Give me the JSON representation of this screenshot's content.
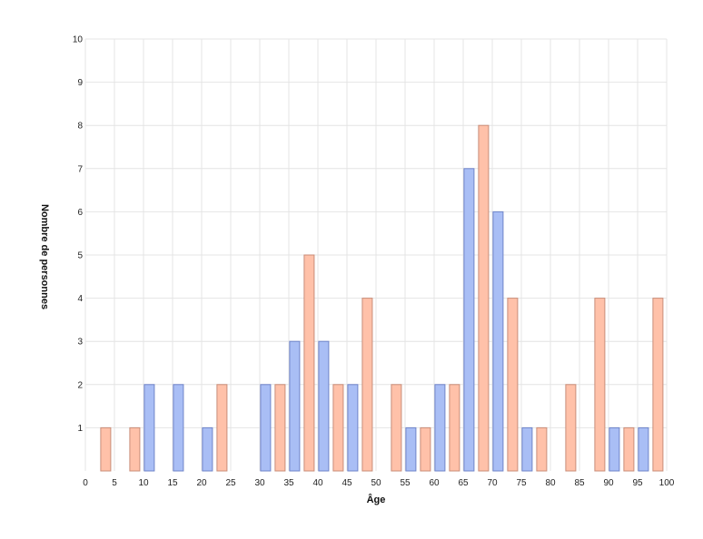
{
  "chart_data": {
    "type": "bar",
    "xlabel": "Âge",
    "ylabel": "Nombre de personnes",
    "xlim": [
      0,
      100
    ],
    "ylim": [
      0,
      10
    ],
    "x_ticks": [
      0,
      5,
      10,
      15,
      20,
      25,
      30,
      35,
      40,
      45,
      50,
      55,
      60,
      65,
      70,
      75,
      80,
      85,
      90,
      95,
      100
    ],
    "y_ticks": [
      1,
      2,
      3,
      4,
      5,
      6,
      7,
      8,
      9,
      10
    ],
    "grid": true,
    "legend": "none",
    "colors": {
      "blue_fill": "#a9bef5",
      "blue_stroke": "#6f84c9",
      "salmon_fill": "#ffc1a9",
      "salmon_stroke": "#c98d78",
      "grid": "#e4e4e4"
    },
    "bars": [
      {
        "x": 3.5,
        "value": 1,
        "color": "salmon"
      },
      {
        "x": 8.5,
        "value": 1,
        "color": "salmon"
      },
      {
        "x": 11,
        "value": 2,
        "color": "blue"
      },
      {
        "x": 16,
        "value": 2,
        "color": "blue"
      },
      {
        "x": 21,
        "value": 1,
        "color": "blue"
      },
      {
        "x": 23.5,
        "value": 2,
        "color": "salmon"
      },
      {
        "x": 31,
        "value": 2,
        "color": "blue"
      },
      {
        "x": 33.5,
        "value": 2,
        "color": "salmon"
      },
      {
        "x": 36,
        "value": 3,
        "color": "blue"
      },
      {
        "x": 38.5,
        "value": 5,
        "color": "salmon"
      },
      {
        "x": 41,
        "value": 3,
        "color": "blue"
      },
      {
        "x": 43.5,
        "value": 2,
        "color": "salmon"
      },
      {
        "x": 46,
        "value": 2,
        "color": "blue"
      },
      {
        "x": 48.5,
        "value": 4,
        "color": "salmon"
      },
      {
        "x": 53.5,
        "value": 2,
        "color": "salmon"
      },
      {
        "x": 56,
        "value": 1,
        "color": "blue"
      },
      {
        "x": 58.5,
        "value": 1,
        "color": "salmon"
      },
      {
        "x": 61,
        "value": 2,
        "color": "blue"
      },
      {
        "x": 63.5,
        "value": 2,
        "color": "salmon"
      },
      {
        "x": 66,
        "value": 7,
        "color": "blue"
      },
      {
        "x": 68.5,
        "value": 8,
        "color": "salmon"
      },
      {
        "x": 71,
        "value": 6,
        "color": "blue"
      },
      {
        "x": 73.5,
        "value": 4,
        "color": "salmon"
      },
      {
        "x": 76,
        "value": 1,
        "color": "blue"
      },
      {
        "x": 78.5,
        "value": 1,
        "color": "salmon"
      },
      {
        "x": 83.5,
        "value": 2,
        "color": "salmon"
      },
      {
        "x": 88.5,
        "value": 4,
        "color": "salmon"
      },
      {
        "x": 91,
        "value": 1,
        "color": "blue"
      },
      {
        "x": 93.5,
        "value": 1,
        "color": "salmon"
      },
      {
        "x": 96,
        "value": 1,
        "color": "blue"
      },
      {
        "x": 98.5,
        "value": 4,
        "color": "salmon"
      }
    ]
  }
}
